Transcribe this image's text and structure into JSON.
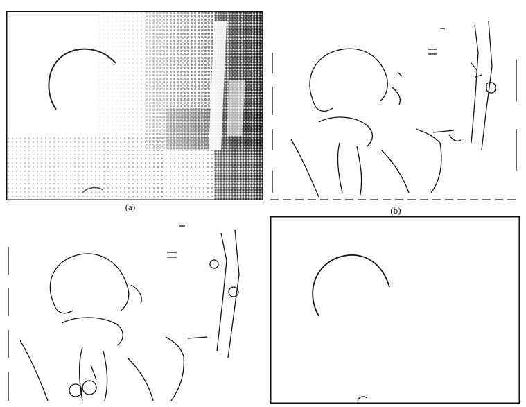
{
  "figure": {
    "panels": [
      {
        "id": "a",
        "label": "(a)",
        "description_type": "halftone-photo"
      },
      {
        "id": "b",
        "label": "(b)",
        "description_type": "edge-map"
      },
      {
        "id": "c",
        "label": "",
        "description_type": "edge-map-filtered"
      },
      {
        "id": "d",
        "label": "",
        "description_type": "detected-arc"
      }
    ]
  }
}
